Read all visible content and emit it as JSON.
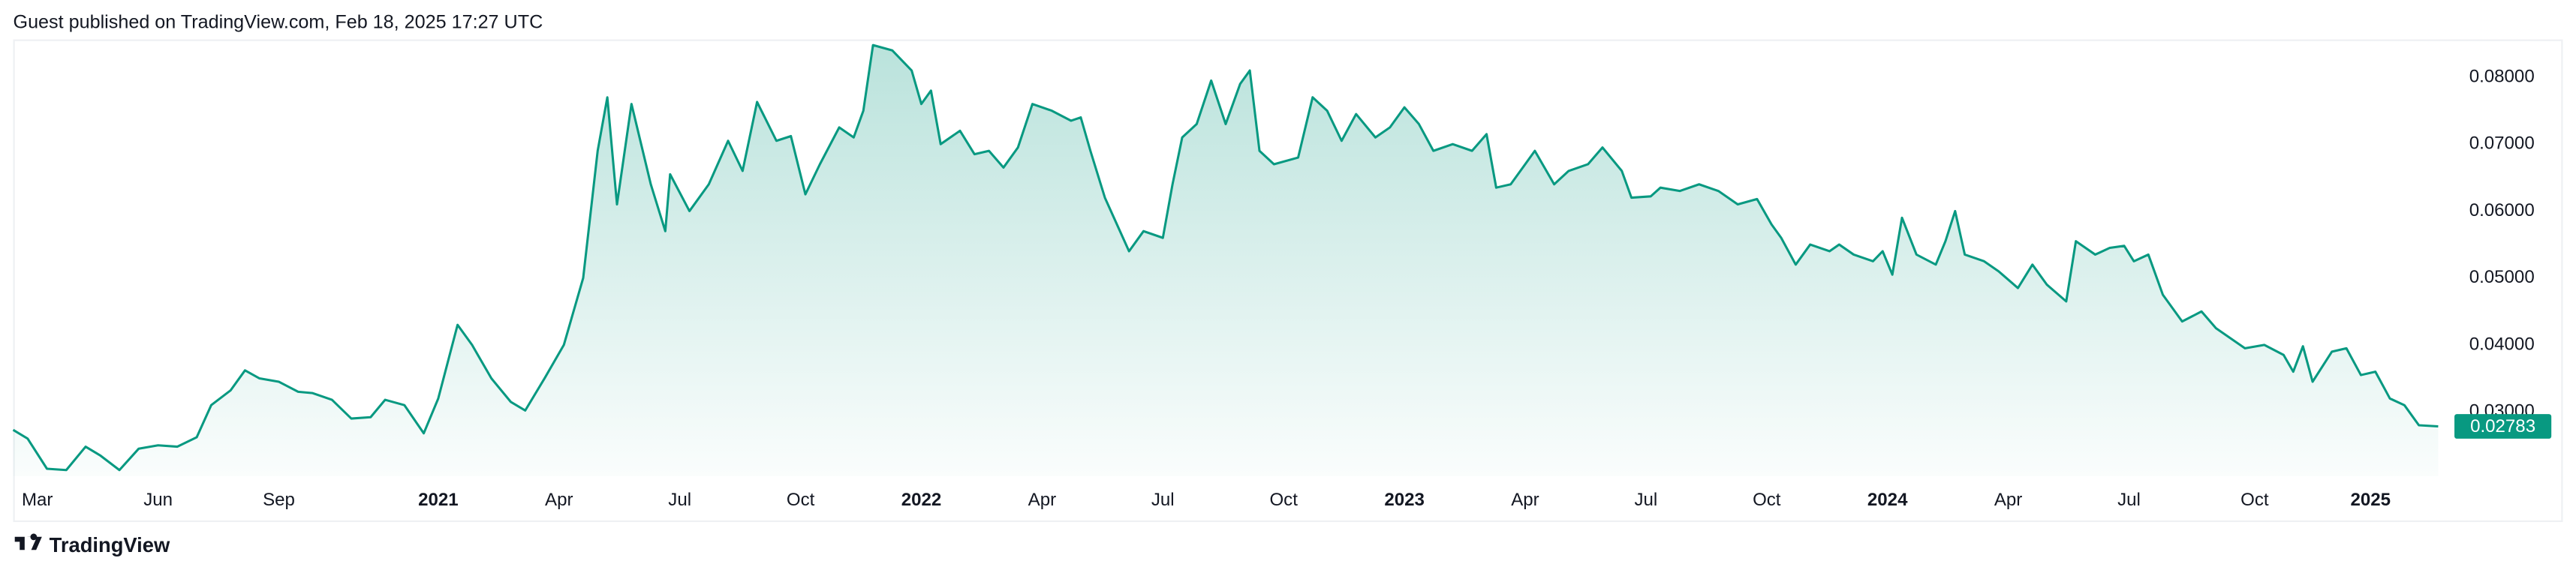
{
  "header": {
    "text": "Guest published on TradingView.com, Feb 18, 2025 17:27 UTC"
  },
  "footer": {
    "brand": "TradingView"
  },
  "chart_data": {
    "type": "area",
    "color": "#089981",
    "xlim": [
      2020.12,
      2025.16
    ],
    "ylim": [
      0.0204,
      0.0854
    ],
    "xticks": [
      {
        "value": 2020.17,
        "label": "Mar"
      },
      {
        "value": 2020.42,
        "label": "Jun"
      },
      {
        "value": 2020.67,
        "label": "Sep"
      },
      {
        "value": 2021,
        "label": "2021"
      },
      {
        "value": 2021.25,
        "label": "Apr"
      },
      {
        "value": 2021.5,
        "label": "Jul"
      },
      {
        "value": 2021.75,
        "label": "Oct"
      },
      {
        "value": 2022,
        "label": "2022"
      },
      {
        "value": 2022.25,
        "label": "Apr"
      },
      {
        "value": 2022.5,
        "label": "Jul"
      },
      {
        "value": 2022.75,
        "label": "Oct"
      },
      {
        "value": 2023,
        "label": "2023"
      },
      {
        "value": 2023.25,
        "label": "Apr"
      },
      {
        "value": 2023.5,
        "label": "Jul"
      },
      {
        "value": 2023.75,
        "label": "Oct"
      },
      {
        "value": 2024,
        "label": "2024"
      },
      {
        "value": 2024.25,
        "label": "Apr"
      },
      {
        "value": 2024.5,
        "label": "Jul"
      },
      {
        "value": 2024.76,
        "label": "Oct"
      },
      {
        "value": 2025,
        "label": "2025"
      }
    ],
    "yticks": [
      {
        "value": 0.03,
        "label": "0.03000"
      },
      {
        "value": 0.04,
        "label": "0.04000"
      },
      {
        "value": 0.05,
        "label": "0.05000"
      },
      {
        "value": 0.06,
        "label": "0.06000"
      },
      {
        "value": 0.07,
        "label": "0.07000"
      },
      {
        "value": 0.08,
        "label": "0.08000"
      }
    ],
    "x": [
      2020.12,
      2020.15,
      2020.19,
      2020.23,
      2020.27,
      2020.3,
      2020.34,
      2020.38,
      2020.42,
      2020.46,
      2020.5,
      2020.53,
      2020.57,
      2020.6,
      2020.63,
      2020.67,
      2020.71,
      2020.74,
      2020.78,
      2020.82,
      2020.86,
      2020.89,
      2020.93,
      2020.97,
      2021.0,
      2021.04,
      2021.07,
      2021.11,
      2021.15,
      2021.18,
      2021.22,
      2021.26,
      2021.3,
      2021.33,
      2021.35,
      2021.37,
      2021.4,
      2021.44,
      2021.47,
      2021.48,
      2021.52,
      2021.56,
      2021.6,
      2021.63,
      2021.66,
      2021.7,
      2021.73,
      2021.76,
      2021.79,
      2021.83,
      2021.86,
      2021.88,
      2021.9,
      2021.94,
      2021.98,
      2022.0,
      2022.02,
      2022.04,
      2022.08,
      2022.11,
      2022.14,
      2022.17,
      2022.2,
      2022.23,
      2022.27,
      2022.31,
      2022.33,
      2022.35,
      2022.38,
      2022.43,
      2022.46,
      2022.5,
      2022.52,
      2022.54,
      2022.57,
      2022.6,
      2022.63,
      2022.66,
      2022.68,
      2022.7,
      2022.73,
      2022.78,
      2022.81,
      2022.84,
      2022.87,
      2022.9,
      2022.94,
      2022.97,
      2023.0,
      2023.03,
      2023.06,
      2023.1,
      2023.14,
      2023.17,
      2023.19,
      2023.22,
      2023.27,
      2023.31,
      2023.34,
      2023.38,
      2023.41,
      2023.45,
      2023.47,
      2023.51,
      2023.53,
      2023.57,
      2023.61,
      2023.65,
      2023.69,
      2023.73,
      2023.76,
      2023.78,
      2023.81,
      2023.84,
      2023.88,
      2023.9,
      2023.93,
      2023.97,
      2023.99,
      2024.01,
      2024.03,
      2024.06,
      2024.1,
      2024.12,
      2024.14,
      2024.16,
      2024.2,
      2024.23,
      2024.27,
      2024.3,
      2024.33,
      2024.37,
      2024.39,
      2024.43,
      2024.46,
      2024.49,
      2024.51,
      2024.54,
      2024.57,
      2024.61,
      2024.65,
      2024.68,
      2024.71,
      2024.74,
      2024.78,
      2024.82,
      2024.84,
      2024.86,
      2024.88,
      2024.92,
      2024.95,
      2024.98,
      2025.01,
      2025.04,
      2025.07,
      2025.1,
      2025.14
    ],
    "values": [
      0.0273,
      0.026,
      0.0215,
      0.0213,
      0.0248,
      0.0235,
      0.0213,
      0.0245,
      0.025,
      0.0248,
      0.0262,
      0.031,
      0.0332,
      0.0362,
      0.035,
      0.0345,
      0.033,
      0.0328,
      0.0318,
      0.029,
      0.0292,
      0.0318,
      0.031,
      0.0268,
      0.032,
      0.043,
      0.04,
      0.035,
      0.0315,
      0.0302,
      0.035,
      0.04,
      0.05,
      0.069,
      0.077,
      0.061,
      0.076,
      0.064,
      0.057,
      0.0655,
      0.06,
      0.064,
      0.0705,
      0.066,
      0.0763,
      0.0705,
      0.0712,
      0.0625,
      0.067,
      0.0725,
      0.071,
      0.075,
      0.0848,
      0.084,
      0.081,
      0.076,
      0.078,
      0.07,
      0.072,
      0.0685,
      0.069,
      0.0665,
      0.0695,
      0.076,
      0.075,
      0.0735,
      0.074,
      0.069,
      0.062,
      0.054,
      0.057,
      0.056,
      0.064,
      0.071,
      0.073,
      0.0795,
      0.073,
      0.079,
      0.081,
      0.069,
      0.067,
      0.068,
      0.077,
      0.075,
      0.0705,
      0.0745,
      0.071,
      0.0725,
      0.0755,
      0.073,
      0.069,
      0.07,
      0.069,
      0.0715,
      0.0635,
      0.064,
      0.069,
      0.064,
      0.066,
      0.067,
      0.0695,
      0.066,
      0.062,
      0.0622,
      0.0635,
      0.063,
      0.064,
      0.063,
      0.061,
      0.0618,
      0.058,
      0.056,
      0.052,
      0.055,
      0.054,
      0.055,
      0.0535,
      0.0525,
      0.054,
      0.0505,
      0.059,
      0.0535,
      0.052,
      0.0555,
      0.06,
      0.0535,
      0.0525,
      0.051,
      0.0485,
      0.052,
      0.049,
      0.0465,
      0.0555,
      0.0535,
      0.0545,
      0.0548,
      0.0525,
      0.0535,
      0.0475,
      0.0435,
      0.045,
      0.0425,
      0.041,
      0.0395,
      0.04,
      0.0385,
      0.036,
      0.0398,
      0.0345,
      0.039,
      0.0395,
      0.0355,
      0.036,
      0.032,
      0.031,
      0.028,
      0.02783
    ]
  }
}
